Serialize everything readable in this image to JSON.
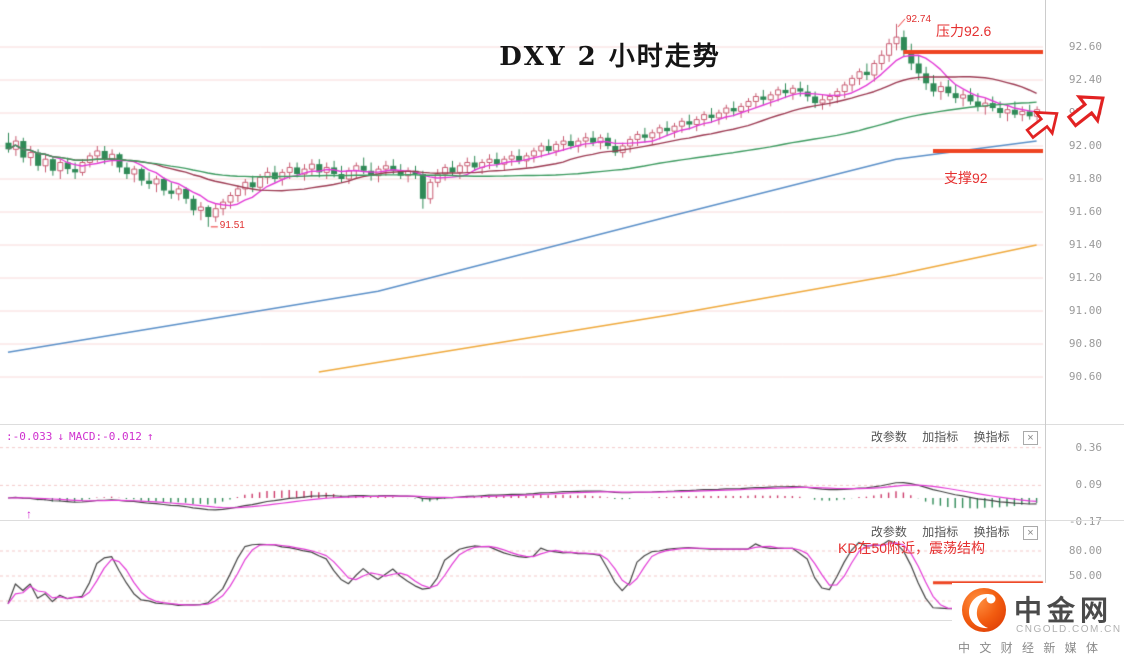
{
  "title": "DXY 2 小时走势",
  "panel_toolbar": {
    "items": [
      "改参数",
      "加指标",
      "换指标"
    ],
    "close": "×"
  },
  "macd_readout": {
    "dif": ":-0.033",
    "down": "↓",
    "macd": "MACD:-0.012",
    "up": "↑"
  },
  "annotations": {
    "peak": "92.74",
    "low": "91.51",
    "resistance": "压力92.6",
    "support": "支撑92",
    "kd_note": "KD在50附近，震荡结构"
  },
  "logo": {
    "name": "中金网",
    "domain": "CNGOLD.COM.CN",
    "tagline": "中 文 财 经 新 媒 体"
  },
  "chart_data": {
    "type": "candlestick",
    "title": "DXY 2 小时走势",
    "price_axis_ticks": [
      92.6,
      92.4,
      92.2,
      92.0,
      91.8,
      91.6,
      91.4,
      91.2,
      91.0,
      90.8,
      90.6
    ],
    "colors": {
      "up": "#c85c72",
      "down": "#2f8a57",
      "grid": "#f7dada",
      "level": "#ee4422"
    },
    "candles_ohlc": [
      [
        92.02,
        92.08,
        91.96,
        91.98
      ],
      [
        91.98,
        92.06,
        91.94,
        92.03
      ],
      [
        92.03,
        92.05,
        91.9,
        91.93
      ],
      [
        91.93,
        92.0,
        91.88,
        91.96
      ],
      [
        91.96,
        91.98,
        91.85,
        91.88
      ],
      [
        91.88,
        91.95,
        91.84,
        91.92
      ],
      [
        91.92,
        91.94,
        91.82,
        91.85
      ],
      [
        91.85,
        91.92,
        91.8,
        91.9
      ],
      [
        91.9,
        91.93,
        91.83,
        91.86
      ],
      [
        91.86,
        91.9,
        91.8,
        91.84
      ],
      [
        91.84,
        91.92,
        91.82,
        91.9
      ],
      [
        91.9,
        91.96,
        91.87,
        91.94
      ],
      [
        91.94,
        92.0,
        91.9,
        91.97
      ],
      [
        91.97,
        92.0,
        91.89,
        91.92
      ],
      [
        91.92,
        91.98,
        91.88,
        91.95
      ],
      [
        91.95,
        91.96,
        91.84,
        91.87
      ],
      [
        91.87,
        91.9,
        91.8,
        91.83
      ],
      [
        91.83,
        91.88,
        91.78,
        91.86
      ],
      [
        91.86,
        91.87,
        91.76,
        91.79
      ],
      [
        91.79,
        91.84,
        91.74,
        91.77
      ],
      [
        91.77,
        91.82,
        91.72,
        91.8
      ],
      [
        91.8,
        91.81,
        91.7,
        91.73
      ],
      [
        91.73,
        91.78,
        91.68,
        91.71
      ],
      [
        91.71,
        91.76,
        91.67,
        91.74
      ],
      [
        91.74,
        91.75,
        91.65,
        91.68
      ],
      [
        91.68,
        91.7,
        91.58,
        91.61
      ],
      [
        91.61,
        91.66,
        91.55,
        91.63
      ],
      [
        91.63,
        91.64,
        91.51,
        91.57
      ],
      [
        91.57,
        91.65,
        91.54,
        91.62
      ],
      [
        91.62,
        91.68,
        91.58,
        91.66
      ],
      [
        91.66,
        91.72,
        91.62,
        91.7
      ],
      [
        91.7,
        91.76,
        91.66,
        91.74
      ],
      [
        91.74,
        91.8,
        91.7,
        91.78
      ],
      [
        91.78,
        91.82,
        91.72,
        91.75
      ],
      [
        91.75,
        91.83,
        91.73,
        91.81
      ],
      [
        91.81,
        91.87,
        91.77,
        91.84
      ],
      [
        91.84,
        91.88,
        91.78,
        91.8
      ],
      [
        91.8,
        91.86,
        91.76,
        91.84
      ],
      [
        91.84,
        91.9,
        91.8,
        91.87
      ],
      [
        91.87,
        91.9,
        91.81,
        91.83
      ],
      [
        91.83,
        91.89,
        91.79,
        91.86
      ],
      [
        91.86,
        91.92,
        91.82,
        91.89
      ],
      [
        91.89,
        91.92,
        91.81,
        91.84
      ],
      [
        91.84,
        91.9,
        91.8,
        91.87
      ],
      [
        91.87,
        91.91,
        91.81,
        91.83
      ],
      [
        91.83,
        91.88,
        91.78,
        91.8
      ],
      [
        91.8,
        91.87,
        91.77,
        91.85
      ],
      [
        91.85,
        91.9,
        91.8,
        91.88
      ],
      [
        91.88,
        91.93,
        91.83,
        91.85
      ],
      [
        91.85,
        91.9,
        91.79,
        91.82
      ],
      [
        91.82,
        91.88,
        91.78,
        91.86
      ],
      [
        91.86,
        91.91,
        91.82,
        91.88
      ],
      [
        91.88,
        91.92,
        91.83,
        91.85
      ],
      [
        91.85,
        91.89,
        91.8,
        91.82
      ],
      [
        91.82,
        91.87,
        91.78,
        91.85
      ],
      [
        91.85,
        91.88,
        91.8,
        91.83
      ],
      [
        91.83,
        91.85,
        91.62,
        91.68
      ],
      [
        91.68,
        91.8,
        91.65,
        91.78
      ],
      [
        91.78,
        91.86,
        91.75,
        91.83
      ],
      [
        91.83,
        91.89,
        91.79,
        91.87
      ],
      [
        91.87,
        91.91,
        91.82,
        91.84
      ],
      [
        91.84,
        91.9,
        91.8,
        91.88
      ],
      [
        91.88,
        91.93,
        91.84,
        91.9
      ],
      [
        91.9,
        91.94,
        91.85,
        91.87
      ],
      [
        91.87,
        91.92,
        91.83,
        91.9
      ],
      [
        91.9,
        91.95,
        91.86,
        91.92
      ],
      [
        91.92,
        91.96,
        91.87,
        91.89
      ],
      [
        91.89,
        91.94,
        91.85,
        91.92
      ],
      [
        91.92,
        91.97,
        91.88,
        91.94
      ],
      [
        91.94,
        91.98,
        91.89,
        91.91
      ],
      [
        91.91,
        91.96,
        91.87,
        91.94
      ],
      [
        91.94,
        91.99,
        91.9,
        91.97
      ],
      [
        91.97,
        92.02,
        91.93,
        92.0
      ],
      [
        92.0,
        92.04,
        91.95,
        91.97
      ],
      [
        91.97,
        92.03,
        91.94,
        92.01
      ],
      [
        92.01,
        92.06,
        91.97,
        92.03
      ],
      [
        92.03,
        92.07,
        91.98,
        92.0
      ],
      [
        92.0,
        92.05,
        91.96,
        92.03
      ],
      [
        92.03,
        92.08,
        91.99,
        92.05
      ],
      [
        92.05,
        92.09,
        92.0,
        92.02
      ],
      [
        92.02,
        92.07,
        91.98,
        92.05
      ],
      [
        92.05,
        92.08,
        91.98,
        92.0
      ],
      [
        92.0,
        92.04,
        91.94,
        91.96
      ],
      [
        91.96,
        92.02,
        91.93,
        92.0
      ],
      [
        92.0,
        92.06,
        91.96,
        92.04
      ],
      [
        92.04,
        92.09,
        92.0,
        92.07
      ],
      [
        92.07,
        92.11,
        92.02,
        92.05
      ],
      [
        92.05,
        92.1,
        92.01,
        92.08
      ],
      [
        92.08,
        92.13,
        92.04,
        92.11
      ],
      [
        92.11,
        92.15,
        92.06,
        92.09
      ],
      [
        92.09,
        92.14,
        92.05,
        92.12
      ],
      [
        92.12,
        92.17,
        92.08,
        92.15
      ],
      [
        92.15,
        92.19,
        92.1,
        92.13
      ],
      [
        92.13,
        92.18,
        92.09,
        92.16
      ],
      [
        92.16,
        92.21,
        92.12,
        92.19
      ],
      [
        92.19,
        92.23,
        92.14,
        92.17
      ],
      [
        92.17,
        92.22,
        92.13,
        92.2
      ],
      [
        92.2,
        92.25,
        92.16,
        92.23
      ],
      [
        92.23,
        92.27,
        92.18,
        92.21
      ],
      [
        92.21,
        92.26,
        92.17,
        92.24
      ],
      [
        92.24,
        92.29,
        92.2,
        92.27
      ],
      [
        92.27,
        92.32,
        92.23,
        92.3
      ],
      [
        92.3,
        92.34,
        92.25,
        92.28
      ],
      [
        92.28,
        92.33,
        92.24,
        92.31
      ],
      [
        92.31,
        92.36,
        92.27,
        92.34
      ],
      [
        92.34,
        92.38,
        92.29,
        92.32
      ],
      [
        92.32,
        92.37,
        92.28,
        92.35
      ],
      [
        92.35,
        92.39,
        92.3,
        92.33
      ],
      [
        92.33,
        92.37,
        92.27,
        92.3
      ],
      [
        92.3,
        92.33,
        92.23,
        92.26
      ],
      [
        92.26,
        92.31,
        92.22,
        92.28
      ],
      [
        92.28,
        92.32,
        92.24,
        92.3
      ],
      [
        92.3,
        92.35,
        92.26,
        92.33
      ],
      [
        92.33,
        92.39,
        92.29,
        92.37
      ],
      [
        92.37,
        92.43,
        92.33,
        92.41
      ],
      [
        92.41,
        92.47,
        92.37,
        92.45
      ],
      [
        92.45,
        92.5,
        92.4,
        92.43
      ],
      [
        92.43,
        92.52,
        92.39,
        92.5
      ],
      [
        92.5,
        92.58,
        92.46,
        92.55
      ],
      [
        92.55,
        92.65,
        92.51,
        92.62
      ],
      [
        92.62,
        92.74,
        92.58,
        92.66
      ],
      [
        92.66,
        92.7,
        92.54,
        92.58
      ],
      [
        92.58,
        92.62,
        92.46,
        92.5
      ],
      [
        92.5,
        92.55,
        92.4,
        92.44
      ],
      [
        92.44,
        92.48,
        92.34,
        92.38
      ],
      [
        92.38,
        92.43,
        92.3,
        92.33
      ],
      [
        92.33,
        92.39,
        92.28,
        92.36
      ],
      [
        92.36,
        92.4,
        92.3,
        92.32
      ],
      [
        92.32,
        92.37,
        92.26,
        92.29
      ],
      [
        92.29,
        92.34,
        92.24,
        92.31
      ],
      [
        92.31,
        92.35,
        92.25,
        92.27
      ],
      [
        92.27,
        92.32,
        92.21,
        92.24
      ],
      [
        92.24,
        92.29,
        92.19,
        92.26
      ],
      [
        92.26,
        92.3,
        92.21,
        92.23
      ],
      [
        92.23,
        92.27,
        92.17,
        92.2
      ],
      [
        92.2,
        92.25,
        92.15,
        92.22
      ],
      [
        92.22,
        92.27,
        92.17,
        92.19
      ],
      [
        92.19,
        92.24,
        92.15,
        92.21
      ],
      [
        92.21,
        92.25,
        92.16,
        92.18
      ],
      [
        92.18,
        92.24,
        92.15,
        92.22
      ]
    ],
    "moving_averages": [
      {
        "period": 7,
        "color": "#e23ad6"
      },
      {
        "period": 20,
        "color": "#9c3a52"
      },
      {
        "period": 60,
        "color": "#3c9a5f"
      }
    ],
    "trend_lines": [
      {
        "color": "#5a8fc8",
        "points": [
          [
            0,
            90.75
          ],
          [
            50,
            91.12
          ],
          [
            90,
            91.58
          ],
          [
            120,
            91.92
          ],
          [
            139,
            92.03
          ]
        ]
      },
      {
        "color": "#efa93c",
        "points": [
          [
            42,
            90.63
          ],
          [
            90,
            90.98
          ],
          [
            120,
            91.22
          ],
          [
            139,
            91.4
          ]
        ]
      }
    ],
    "levels": {
      "resistance": {
        "price": 92.57,
        "label": "压力92.6",
        "from_index": 121
      },
      "support": {
        "price": 91.97,
        "label": "支撑92",
        "from_index": 125
      }
    },
    "peak_label": {
      "index": 120,
      "price": 92.74
    },
    "low_label": {
      "index": 27,
      "price": 91.51
    },
    "macd": {
      "fast": 12,
      "slow": 26,
      "signal": 9,
      "axis_ticks": [
        0.36,
        0.09,
        -0.17
      ],
      "readout_dif": -0.033,
      "readout_macd": -0.012,
      "colors": {
        "dif": "#444444",
        "dea": "#e23ad6",
        "hist_pos": "#cc3a6a",
        "hist_neg": "#2f8a57"
      }
    },
    "kd": {
      "period": 9,
      "smooth": 3,
      "axis_ticks": [
        80,
        50
      ],
      "grid": [
        80,
        50,
        20
      ],
      "note": "KD在50附近，震荡结构",
      "red_mark": {
        "value": 42,
        "from_index": 125
      },
      "colors": {
        "k": "#444444",
        "d": "#e23ad6"
      }
    }
  }
}
